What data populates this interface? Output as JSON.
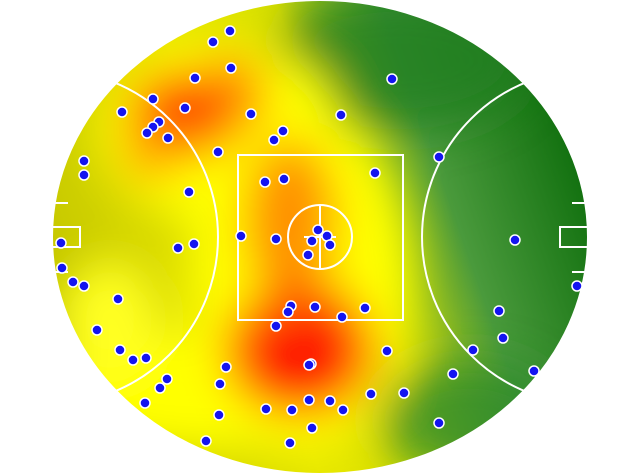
{
  "chart_data": {
    "type": "scatter",
    "color": "#1414f0",
    "xlim": [
      0,
      536
    ],
    "ylim": [
      0,
      474
    ],
    "x": [
      178,
      161,
      179,
      143,
      340,
      101,
      133,
      70,
      199,
      289,
      107,
      101,
      95,
      116,
      231,
      222,
      166,
      387,
      32,
      32,
      323,
      213,
      232,
      137,
      266,
      275,
      260,
      278,
      189,
      224,
      142,
      126,
      9,
      256,
      463,
      10,
      21,
      32,
      525,
      66,
      239,
      263,
      313,
      236,
      290,
      447,
      45,
      224,
      451,
      68,
      94,
      81,
      335,
      421,
      259,
      257,
      174,
      482,
      115,
      401,
      168,
      108,
      352,
      319,
      257,
      278,
      93,
      214,
      240,
      291,
      167,
      387,
      260,
      154,
      238
    ],
    "y": [
      443,
      432,
      406,
      396,
      395,
      375,
      366,
      362,
      360,
      359,
      352,
      347,
      341,
      336,
      343,
      334,
      322,
      317,
      313,
      299,
      301,
      292,
      295,
      282,
      244,
      238,
      233,
      229,
      238,
      235,
      230,
      226,
      231,
      219,
      234,
      206,
      192,
      188,
      188,
      175,
      168,
      167,
      166,
      162,
      157,
      163,
      144,
      148,
      136,
      124,
      116,
      114,
      123,
      124,
      110,
      109,
      107,
      103,
      95,
      100,
      90,
      86,
      81,
      80,
      74,
      73,
      71,
      65,
      64,
      64,
      59,
      51,
      46,
      33,
      31
    ]
  }
}
